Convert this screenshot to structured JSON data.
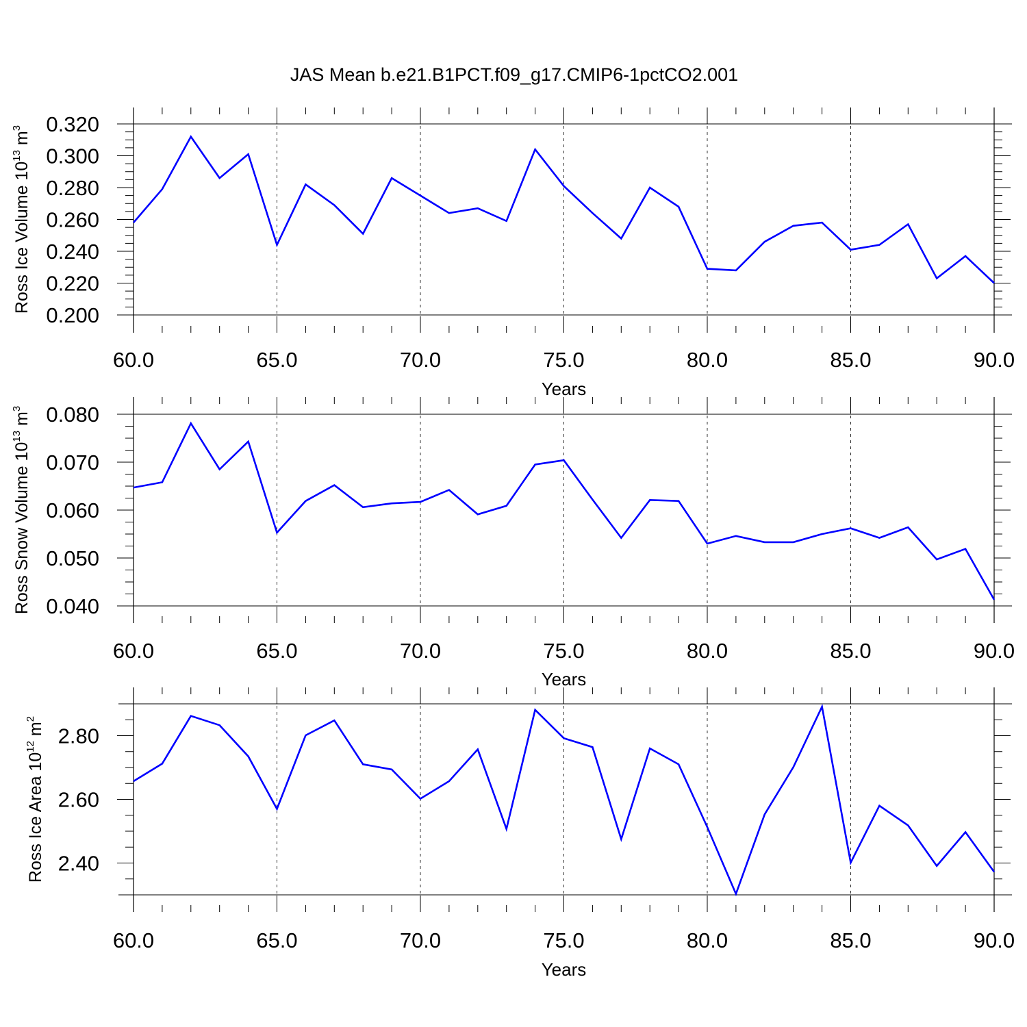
{
  "title": "JAS Mean b.e21.B1PCT.f09_g17.CMIP6-1pctCO2.001",
  "colors": {
    "series": "#0000ff",
    "axes": "#000000",
    "grid": "#000000"
  },
  "chart_data": [
    {
      "type": "line",
      "ylabel": {
        "prefix": "Ross Ice Volume 10",
        "exponent": "13",
        "unit": " m",
        "unit_exponent": "3"
      },
      "xlabel": "Years",
      "xlim": [
        60,
        90
      ],
      "ylim": [
        0.2,
        0.32
      ],
      "x_ticks": [
        "60.0",
        "65.0",
        "70.0",
        "75.0",
        "80.0",
        "85.0",
        "90.0"
      ],
      "y_ticks": [
        "0.200",
        "0.220",
        "0.240",
        "0.260",
        "0.280",
        "0.300",
        "0.320"
      ],
      "grid": "vertical dashed at major x ticks",
      "x": [
        60,
        61,
        62,
        63,
        64,
        65,
        66,
        67,
        68,
        69,
        70,
        71,
        72,
        73,
        74,
        75,
        76,
        77,
        78,
        79,
        80,
        81,
        82,
        83,
        84,
        85,
        86,
        87,
        88,
        89,
        90
      ],
      "values": [
        0.258,
        0.279,
        0.312,
        0.286,
        0.301,
        0.244,
        0.282,
        0.269,
        0.251,
        0.286,
        0.275,
        0.264,
        0.267,
        0.259,
        0.304,
        0.281,
        0.264,
        0.248,
        0.28,
        0.268,
        0.229,
        0.228,
        0.246,
        0.256,
        0.258,
        0.241,
        0.244,
        0.257,
        0.223,
        0.237,
        0.22
      ]
    },
    {
      "type": "line",
      "ylabel": {
        "prefix": "Ross Snow Volume 10",
        "exponent": "13",
        "unit": " m",
        "unit_exponent": "3"
      },
      "xlabel": "Years",
      "xlim": [
        60,
        90
      ],
      "ylim": [
        0.04,
        0.08
      ],
      "x_ticks": [
        "60.0",
        "65.0",
        "70.0",
        "75.0",
        "80.0",
        "85.0",
        "90.0"
      ],
      "y_ticks": [
        "0.040",
        "0.050",
        "0.060",
        "0.070",
        "0.080"
      ],
      "grid": "vertical dashed at major x ticks",
      "x": [
        60,
        61,
        62,
        63,
        64,
        65,
        66,
        67,
        68,
        69,
        70,
        71,
        72,
        73,
        74,
        75,
        76,
        77,
        78,
        79,
        80,
        81,
        82,
        83,
        84,
        85,
        86,
        87,
        88,
        89,
        90
      ],
      "values": [
        0.0647,
        0.0658,
        0.0781,
        0.0685,
        0.0743,
        0.0553,
        0.0619,
        0.0652,
        0.0606,
        0.0614,
        0.0617,
        0.0642,
        0.0591,
        0.0609,
        0.0695,
        0.0704,
        0.0622,
        0.0542,
        0.0621,
        0.0619,
        0.053,
        0.0546,
        0.0533,
        0.0533,
        0.055,
        0.0562,
        0.0542,
        0.0564,
        0.0497,
        0.0519,
        0.0413
      ]
    },
    {
      "type": "line",
      "ylabel": {
        "prefix": "Ross Ice Area 10",
        "exponent": "12",
        "unit": " m",
        "unit_exponent": "2"
      },
      "xlabel": "Years",
      "xlim": [
        60,
        90
      ],
      "ylim": [
        2.3,
        2.9
      ],
      "x_ticks": [
        "60.0",
        "65.0",
        "70.0",
        "75.0",
        "80.0",
        "85.0",
        "90.0"
      ],
      "y_ticks": [
        "2.40",
        "2.60",
        "2.80"
      ],
      "grid": "vertical dashed at major x ticks",
      "x": [
        60,
        61,
        62,
        63,
        64,
        65,
        66,
        67,
        68,
        69,
        70,
        71,
        72,
        73,
        74,
        75,
        76,
        77,
        78,
        79,
        80,
        81,
        82,
        83,
        84,
        85,
        86,
        87,
        88,
        89,
        90
      ],
      "values": [
        2.657,
        2.712,
        2.862,
        2.833,
        2.735,
        2.57,
        2.801,
        2.848,
        2.71,
        2.694,
        2.602,
        2.657,
        2.757,
        2.507,
        2.881,
        2.792,
        2.764,
        2.475,
        2.76,
        2.71,
        2.513,
        2.303,
        2.553,
        2.701,
        2.891,
        2.401,
        2.58,
        2.518,
        2.391,
        2.497,
        2.372
      ]
    }
  ]
}
